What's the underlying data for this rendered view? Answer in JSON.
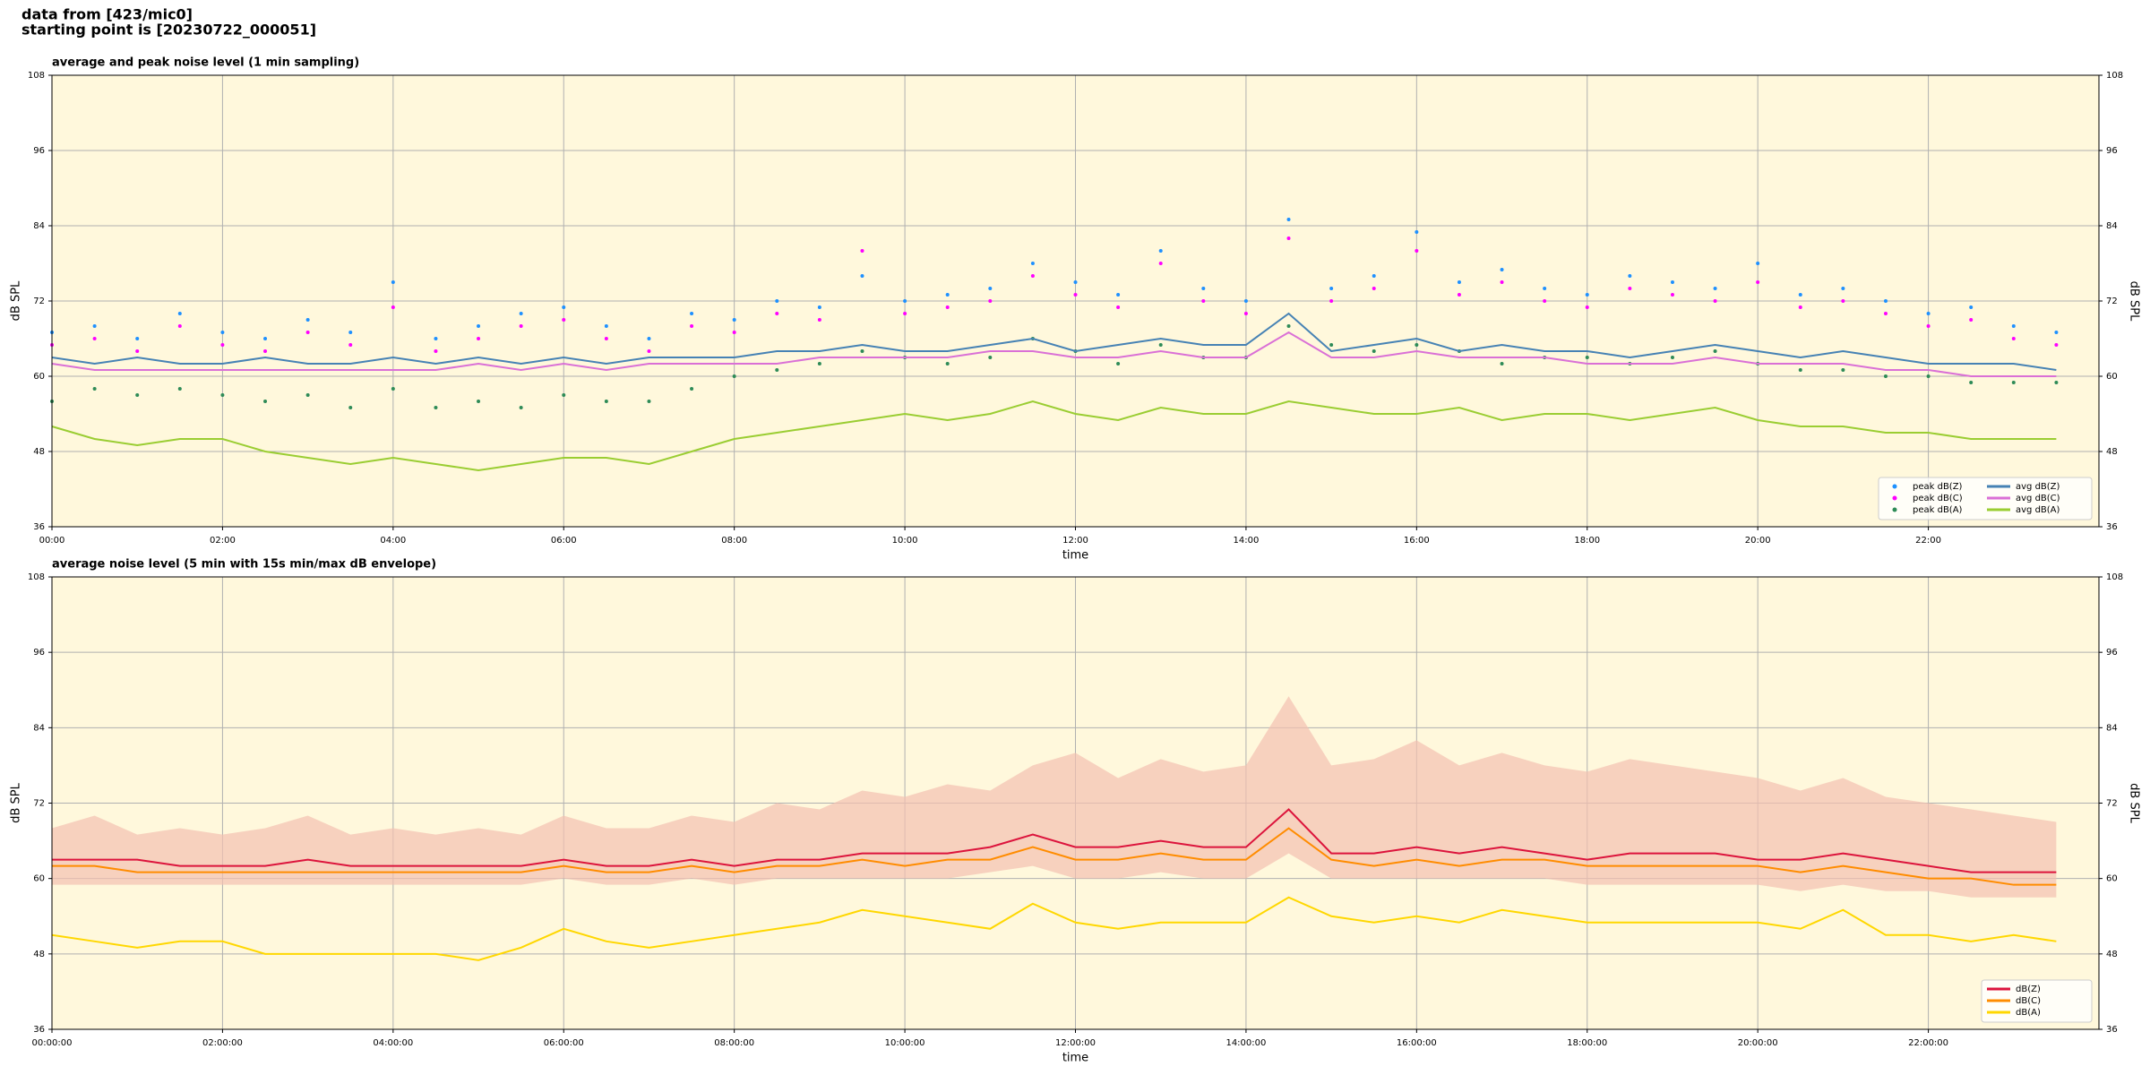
{
  "header": [
    "data from [423/mic0]",
    "starting point is [20230722_000051]"
  ],
  "chart_data": [
    {
      "type": "line",
      "title": "average and peak noise level (1 min sampling)",
      "x_label": "time",
      "y_label": "dB SPL",
      "background": "#fff8dc",
      "grid": true,
      "legend": "lower right",
      "legend_columns": 2,
      "xlim": [
        0,
        1440
      ],
      "xticks": [
        {
          "value": 0,
          "label": "00:00"
        },
        {
          "value": 120,
          "label": "02:00"
        },
        {
          "value": 240,
          "label": "04:00"
        },
        {
          "value": 360,
          "label": "06:00"
        },
        {
          "value": 480,
          "label": "08:00"
        },
        {
          "value": 600,
          "label": "10:00"
        },
        {
          "value": 720,
          "label": "12:00"
        },
        {
          "value": 840,
          "label": "14:00"
        },
        {
          "value": 960,
          "label": "16:00"
        },
        {
          "value": 1080,
          "label": "18:00"
        },
        {
          "value": 1200,
          "label": "20:00"
        },
        {
          "value": 1320,
          "label": "22:00"
        }
      ],
      "ylim": [
        36,
        108
      ],
      "yticks": [
        36,
        48,
        60,
        72,
        84,
        96,
        108
      ],
      "x": [
        0,
        30,
        60,
        90,
        120,
        150,
        180,
        210,
        240,
        270,
        300,
        330,
        360,
        390,
        420,
        450,
        480,
        510,
        540,
        570,
        600,
        630,
        660,
        690,
        720,
        750,
        780,
        810,
        840,
        870,
        900,
        930,
        960,
        990,
        1020,
        1050,
        1080,
        1110,
        1140,
        1170,
        1200,
        1230,
        1260,
        1290,
        1320,
        1350,
        1380,
        1410
      ],
      "series": [
        {
          "name": "peak dB(Z)",
          "style": "dot",
          "color": "#1e90ff",
          "values": [
            67,
            68,
            66,
            70,
            67,
            66,
            69,
            67,
            75,
            66,
            68,
            70,
            71,
            68,
            66,
            70,
            69,
            72,
            71,
            76,
            72,
            73,
            74,
            78,
            75,
            73,
            80,
            74,
            72,
            85,
            74,
            76,
            83,
            75,
            77,
            74,
            73,
            76,
            75,
            74,
            78,
            73,
            74,
            72,
            70,
            71,
            68,
            67
          ]
        },
        {
          "name": "peak dB(C)",
          "style": "dot",
          "color": "#ff00ff",
          "values": [
            65,
            66,
            64,
            68,
            65,
            64,
            67,
            65,
            71,
            64,
            66,
            68,
            69,
            66,
            64,
            68,
            67,
            70,
            69,
            80,
            70,
            71,
            72,
            76,
            73,
            71,
            78,
            72,
            70,
            82,
            72,
            74,
            80,
            73,
            75,
            72,
            71,
            74,
            73,
            72,
            75,
            71,
            72,
            70,
            68,
            69,
            66,
            65
          ]
        },
        {
          "name": "peak dB(A)",
          "style": "dot",
          "color": "#2e8b57",
          "values": [
            56,
            58,
            57,
            58,
            57,
            56,
            57,
            55,
            58,
            55,
            56,
            55,
            57,
            56,
            56,
            58,
            60,
            61,
            62,
            64,
            63,
            62,
            63,
            66,
            64,
            62,
            65,
            63,
            63,
            68,
            65,
            64,
            65,
            64,
            62,
            63,
            63,
            62,
            63,
            64,
            62,
            61,
            61,
            60,
            60,
            59,
            59,
            59
          ]
        },
        {
          "name": "avg dB(Z)",
          "style": "line",
          "color": "#4682b4",
          "values": [
            63,
            62,
            63,
            62,
            62,
            63,
            62,
            62,
            63,
            62,
            63,
            62,
            63,
            62,
            63,
            63,
            63,
            64,
            64,
            65,
            64,
            64,
            65,
            66,
            64,
            65,
            66,
            65,
            65,
            70,
            64,
            65,
            66,
            64,
            65,
            64,
            64,
            63,
            64,
            65,
            64,
            63,
            64,
            63,
            62,
            62,
            62,
            61
          ]
        },
        {
          "name": "avg dB(C)",
          "style": "line",
          "color": "#da70d6",
          "values": [
            62,
            61,
            61,
            61,
            61,
            61,
            61,
            61,
            61,
            61,
            62,
            61,
            62,
            61,
            62,
            62,
            62,
            62,
            63,
            63,
            63,
            63,
            64,
            64,
            63,
            63,
            64,
            63,
            63,
            67,
            63,
            63,
            64,
            63,
            63,
            63,
            62,
            62,
            62,
            63,
            62,
            62,
            62,
            61,
            61,
            60,
            60,
            60
          ]
        },
        {
          "name": "avg dB(A)",
          "style": "line",
          "color": "#9acd32",
          "values": [
            52,
            50,
            49,
            50,
            50,
            48,
            47,
            46,
            47,
            46,
            45,
            46,
            47,
            47,
            46,
            48,
            50,
            51,
            52,
            53,
            54,
            53,
            54,
            56,
            54,
            53,
            55,
            54,
            54,
            56,
            55,
            54,
            54,
            55,
            53,
            54,
            54,
            53,
            54,
            55,
            53,
            52,
            52,
            51,
            51,
            50,
            50,
            50
          ]
        }
      ]
    },
    {
      "type": "line",
      "title": "average noise level (5 min with 15s min/max dB envelope)",
      "x_label": "time",
      "y_label": "dB SPL",
      "background": "#fff8dc",
      "grid": true,
      "legend": "lower right",
      "legend_columns": 1,
      "xlim": [
        0,
        1440
      ],
      "xticks": [
        {
          "value": 0,
          "label": "00:00:00"
        },
        {
          "value": 120,
          "label": "02:00:00"
        },
        {
          "value": 240,
          "label": "04:00:00"
        },
        {
          "value": 360,
          "label": "06:00:00"
        },
        {
          "value": 480,
          "label": "08:00:00"
        },
        {
          "value": 600,
          "label": "10:00:00"
        },
        {
          "value": 720,
          "label": "12:00:00"
        },
        {
          "value": 840,
          "label": "14:00:00"
        },
        {
          "value": 960,
          "label": "16:00:00"
        },
        {
          "value": 1080,
          "label": "18:00:00"
        },
        {
          "value": 1200,
          "label": "20:00:00"
        },
        {
          "value": 1320,
          "label": "22:00:00"
        }
      ],
      "ylim": [
        36,
        108
      ],
      "yticks": [
        36,
        48,
        60,
        72,
        84,
        96,
        108
      ],
      "x": [
        0,
        30,
        60,
        90,
        120,
        150,
        180,
        210,
        240,
        270,
        300,
        330,
        360,
        390,
        420,
        450,
        480,
        510,
        540,
        570,
        600,
        630,
        660,
        690,
        720,
        750,
        780,
        810,
        840,
        870,
        900,
        930,
        960,
        990,
        1020,
        1050,
        1080,
        1110,
        1140,
        1170,
        1200,
        1230,
        1260,
        1290,
        1320,
        1350,
        1380,
        1410
      ],
      "envelope_color": "#f4c0b0",
      "envelope_min": [
        59,
        59,
        59,
        59,
        59,
        59,
        59,
        59,
        59,
        59,
        59,
        59,
        60,
        59,
        59,
        60,
        59,
        60,
        60,
        60,
        60,
        60,
        61,
        62,
        60,
        60,
        61,
        60,
        60,
        64,
        60,
        60,
        60,
        60,
        60,
        60,
        59,
        59,
        59,
        59,
        59,
        58,
        59,
        58,
        58,
        57,
        57,
        57
      ],
      "envelope_max": [
        68,
        70,
        67,
        68,
        67,
        68,
        70,
        67,
        68,
        67,
        68,
        67,
        70,
        68,
        68,
        70,
        69,
        72,
        71,
        74,
        73,
        75,
        74,
        78,
        80,
        76,
        79,
        77,
        78,
        89,
        78,
        79,
        82,
        78,
        80,
        78,
        77,
        79,
        78,
        77,
        76,
        74,
        76,
        73,
        72,
        71,
        70,
        69
      ],
      "series": [
        {
          "name": "dB(Z)",
          "style": "line",
          "color": "#dc143c",
          "values": [
            63,
            63,
            63,
            62,
            62,
            62,
            63,
            62,
            62,
            62,
            62,
            62,
            63,
            62,
            62,
            63,
            62,
            63,
            63,
            64,
            64,
            64,
            65,
            67,
            65,
            65,
            66,
            65,
            65,
            71,
            64,
            64,
            65,
            64,
            65,
            64,
            63,
            64,
            64,
            64,
            63,
            63,
            64,
            63,
            62,
            61,
            61,
            61
          ]
        },
        {
          "name": "dB(C)",
          "style": "line",
          "color": "#ff8c00",
          "values": [
            62,
            62,
            61,
            61,
            61,
            61,
            61,
            61,
            61,
            61,
            61,
            61,
            62,
            61,
            61,
            62,
            61,
            62,
            62,
            63,
            62,
            63,
            63,
            65,
            63,
            63,
            64,
            63,
            63,
            68,
            63,
            62,
            63,
            62,
            63,
            63,
            62,
            62,
            62,
            62,
            62,
            61,
            62,
            61,
            60,
            60,
            59,
            59
          ]
        },
        {
          "name": "dB(A)",
          "style": "line",
          "color": "#ffd700",
          "values": [
            51,
            50,
            49,
            50,
            50,
            48,
            48,
            48,
            48,
            48,
            47,
            49,
            52,
            50,
            49,
            50,
            51,
            52,
            53,
            55,
            54,
            53,
            52,
            56,
            53,
            52,
            53,
            53,
            53,
            57,
            54,
            53,
            54,
            53,
            55,
            54,
            53,
            53,
            53,
            53,
            53,
            52,
            55,
            51,
            51,
            50,
            51,
            50
          ]
        }
      ]
    }
  ]
}
